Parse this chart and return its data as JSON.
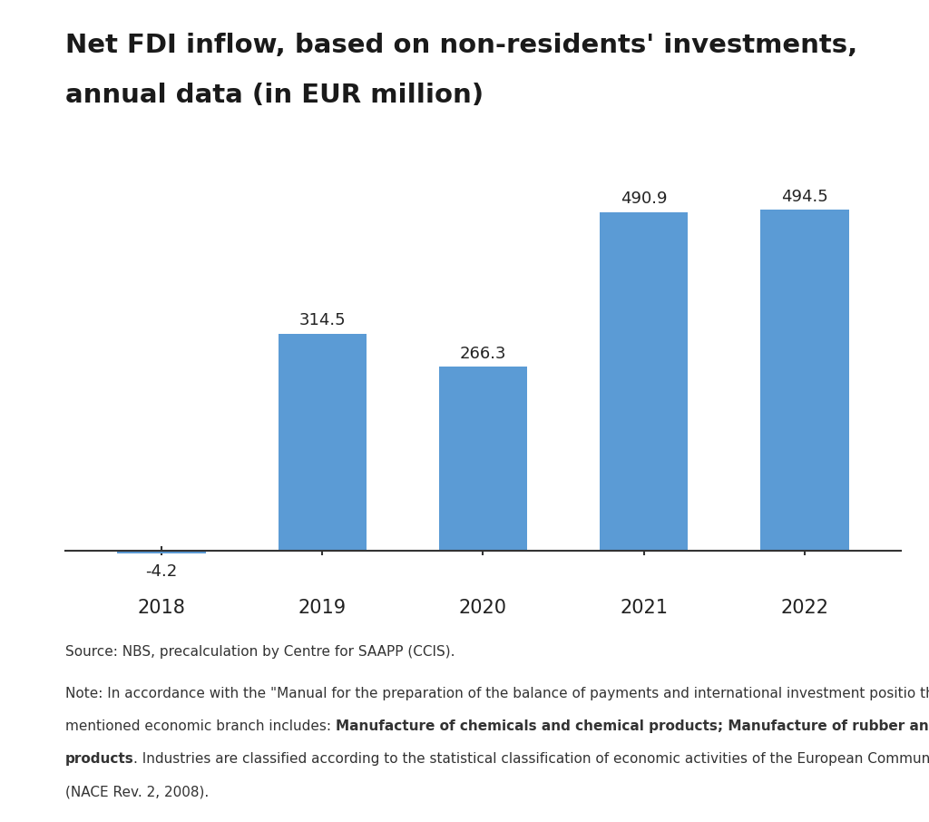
{
  "title_line1": "Net FDI inflow, based on non-residents' investments,",
  "title_line2": "annual data (in EUR million)",
  "categories": [
    "2018",
    "2019",
    "2020",
    "2021",
    "2022"
  ],
  "values": [
    -4.2,
    314.5,
    266.3,
    490.9,
    494.5
  ],
  "bar_color": "#5b9bd5",
  "background_color": "#ffffff",
  "title_fontsize": 21,
  "label_fontsize": 13,
  "tick_fontsize": 15,
  "source_text": "Source: NBS, precalculation by Centre for SAAPP (CCIS).",
  "note_line1_normal": "Note: In accordance with the \"Manual for the preparation of the balance of payments and international investment positio the",
  "note_line2_normal": "mentioned economic branch includes: ",
  "note_line2_bold": "Manufacture of chemicals and chemical products; Manufacture of rubber and plastic",
  "note_line3_bold": "products",
  "note_line3_normal": ". Industries are classified according to the statistical classification of economic activities of the European Community",
  "note_line4": "(NACE Rev. 2, 2008).",
  "note_fontsize": 11,
  "ylim_min": -60,
  "ylim_max": 560
}
